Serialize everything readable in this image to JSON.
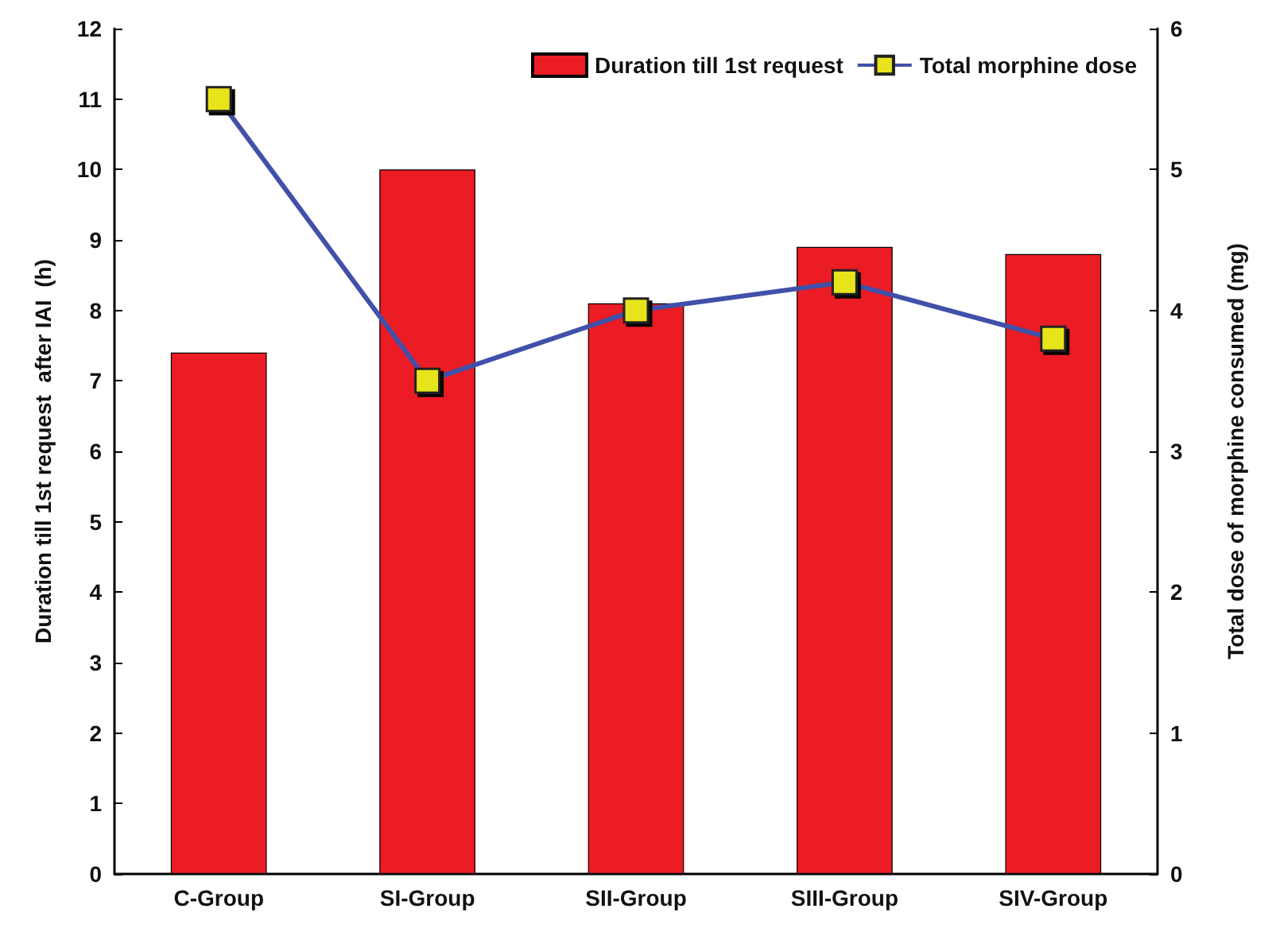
{
  "chart_data": {
    "type": "bar",
    "categories": [
      "C-Group",
      "SI-Group",
      "SII-Group",
      "SIII-Group",
      "SIV-Group"
    ],
    "series": [
      {
        "name": "Duration till 1st request",
        "color": "#ec1c24",
        "values": [
          7.4,
          10.0,
          8.1,
          8.9,
          8.8
        ]
      },
      {
        "name": "Total morphine dose",
        "type": "line",
        "axis": "y2",
        "color": "#4150a8",
        "marker": "square",
        "values": [
          5.5,
          3.5,
          4.0,
          4.2,
          3.8
        ]
      }
    ],
    "ylabel": "Duration till 1st request  after IAI  (h)",
    "y2label": "Total dose of morphine consumed (mg)",
    "ylim": [
      0,
      12
    ],
    "yticks": [
      0,
      1,
      2,
      3,
      4,
      5,
      6,
      7,
      8,
      9,
      10,
      11,
      12
    ],
    "y2lim": [
      0,
      6
    ],
    "y2ticks": [
      0,
      1,
      2,
      3,
      4,
      5,
      6
    ],
    "legend": "top right",
    "grid": false
  }
}
